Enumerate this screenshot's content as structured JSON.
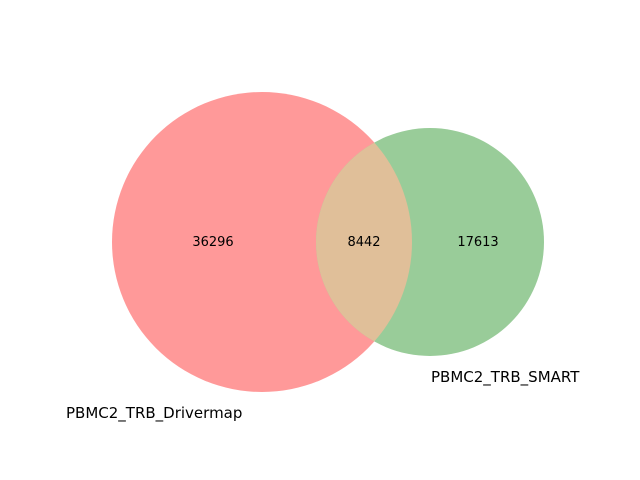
{
  "venn": {
    "sets": [
      {
        "name": "PBMC2_TRB_Drivermap",
        "color": "#ff9999",
        "only_count": "36296"
      },
      {
        "name": "PBMC2_TRB_SMART",
        "color": "#99cc99",
        "only_count": "17613"
      }
    ],
    "intersection": {
      "count": "8442",
      "color": "#e0bf99"
    }
  }
}
